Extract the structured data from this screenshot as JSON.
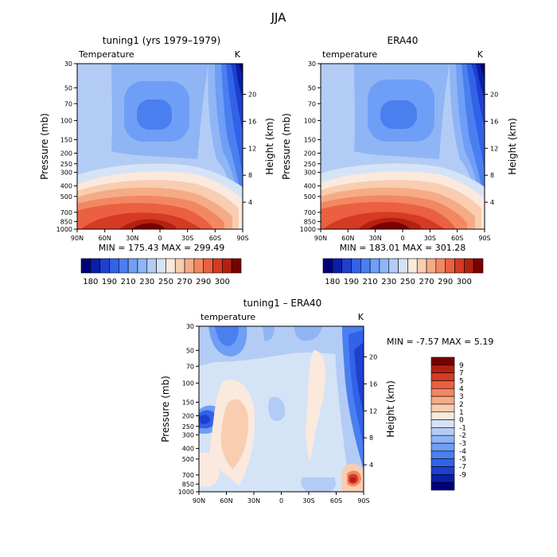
{
  "page": {
    "title": "JJA"
  },
  "colorbar_top": {
    "labels": [
      "180",
      "190",
      "210",
      "230",
      "250",
      "270",
      "290",
      "300"
    ],
    "colors": [
      "#00007a",
      "#0a1fa8",
      "#1e3fd0",
      "#3262e8",
      "#4a7ff0",
      "#6e9ef6",
      "#8fb5f5",
      "#b3ccf5",
      "#d5e3f6",
      "#fbe9dd",
      "#f8cdb0",
      "#f6ab87",
      "#f28862",
      "#ea6040",
      "#d53a25",
      "#b32010",
      "#7a0000"
    ]
  },
  "colorbar_diff": {
    "labels": [
      "9",
      "7",
      "5",
      "4",
      "3",
      "2",
      "1",
      "0",
      "-1",
      "-2",
      "-3",
      "-4",
      "-5",
      "-7",
      "-9"
    ],
    "colors": [
      "#7a0000",
      "#b32010",
      "#d53a25",
      "#ea6040",
      "#f28862",
      "#f6ab87",
      "#f8cdb0",
      "#fbe9dd",
      "#d5e3f6",
      "#b3ccf5",
      "#8fb5f5",
      "#6e9ef6",
      "#4a7ff0",
      "#3262e8",
      "#1e3fd0",
      "#0a1fa8",
      "#00007a"
    ]
  },
  "chart_data": [
    {
      "type": "heatmap",
      "title": "tuning1 (yrs 1979–1979)",
      "subtitle_left": "Temperature",
      "subtitle_right": "K",
      "ylabel": "Pressure (mb)",
      "ylabel_right": "Height (km)",
      "x_ticks": [
        "90N",
        "60N",
        "30N",
        "0",
        "30S",
        "60S",
        "90S"
      ],
      "y_ticks": [
        "30",
        "50",
        "70",
        "100",
        "150",
        "200",
        "250",
        "300",
        "400",
        "500",
        "700",
        "850",
        "1000"
      ],
      "y2_ticks": [
        "20",
        "16",
        "12",
        "8",
        "4"
      ],
      "min_max_text": "MIN = 175.43  MAX = 299.49",
      "min": 175.43,
      "max": 299.49
    },
    {
      "type": "heatmap",
      "title": "ERA40",
      "subtitle_left": "temperature",
      "subtitle_right": "K",
      "ylabel": "Pressure (mb)",
      "ylabel_right": "Height (km)",
      "x_ticks": [
        "90N",
        "60N",
        "30N",
        "0",
        "30S",
        "60S",
        "90S"
      ],
      "y_ticks": [
        "30",
        "50",
        "70",
        "100",
        "150",
        "200",
        "250",
        "300",
        "400",
        "500",
        "700",
        "850",
        "1000"
      ],
      "y2_ticks": [
        "20",
        "16",
        "12",
        "8",
        "4"
      ],
      "min_max_text": "MIN = 183.01  MAX = 301.28",
      "min": 183.01,
      "max": 301.28
    },
    {
      "type": "heatmap",
      "title": "tuning1 – ERA40",
      "subtitle_left": "temperature",
      "subtitle_right": "K",
      "ylabel": "Pressure (mb)",
      "ylabel_right": "Height (km)",
      "x_ticks": [
        "90N",
        "60N",
        "30N",
        "0",
        "30S",
        "60S",
        "90S"
      ],
      "y_ticks": [
        "30",
        "50",
        "70",
        "100",
        "150",
        "200",
        "250",
        "300",
        "400",
        "500",
        "700",
        "850",
        "1000"
      ],
      "y2_ticks": [
        "20",
        "16",
        "12",
        "8",
        "4"
      ],
      "min_max_text": "MIN =   -7.57   MAX =    5.19",
      "min": -7.57,
      "max": 5.19
    }
  ]
}
